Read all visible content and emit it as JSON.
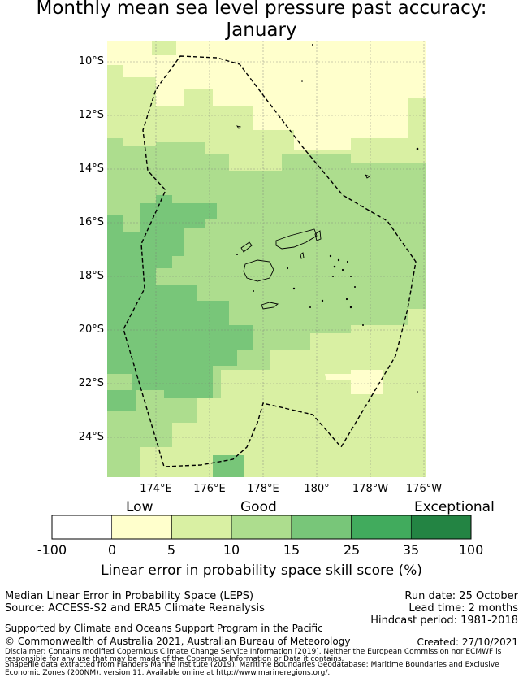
{
  "title": {
    "line1": "Monthly mean sea level pressure past accuracy:",
    "line2": "January"
  },
  "map": {
    "lat_labels": [
      "10°S",
      "12°S",
      "14°S",
      "16°S",
      "18°S",
      "20°S",
      "22°S",
      "24°S"
    ],
    "lon_labels": [
      "174°E",
      "176°E",
      "178°E",
      "180°",
      "178°W",
      "176°W"
    ]
  },
  "colorbar": {
    "category_labels": {
      "low": "Low",
      "good": "Good",
      "exceptional": "Exceptional"
    },
    "ticks": [
      "-100",
      "0",
      "5",
      "10",
      "15",
      "25",
      "35",
      "100"
    ],
    "colors": [
      "#ffffff",
      "#ffffcc",
      "#d9f0a3",
      "#addd8e",
      "#78c679",
      "#41ab5d",
      "#238443"
    ],
    "label": "Linear error in probability space skill score (%)"
  },
  "footer": {
    "method": "Median Linear Error in Probability Space (LEPS)",
    "source": "Source: ACCESS-S2 and ERA5 Climate Reanalysis",
    "run_date": "Run date: 25 October",
    "lead_time": "Lead time: 2 months",
    "hindcast": "Hindcast period: 1981-2018",
    "support": "Supported by Climate and Oceans Support Program in the Pacific",
    "copyright": "© Commonwealth of Australia 2021, Australian Bureau of Meteorology",
    "created": "Created: 27/10/2021",
    "disclaimer1": "Disclaimer: Contains modified Copernicus Climate Change Service Information [2019]. Neither the European Commission nor ECMWF is",
    "disclaimer2": "responsible for any use that may be made of the Copernicus Information or Data it contains.",
    "shapefile1": "Shapefile data extracted from Flanders Marine Institute (2019). Maritime Boundaries Geodatabase: Maritime Boundaries and Exclusive",
    "shapefile2": "Economic Zones (200NM), version 11. Available online at http://www.marineregions.org/."
  }
}
